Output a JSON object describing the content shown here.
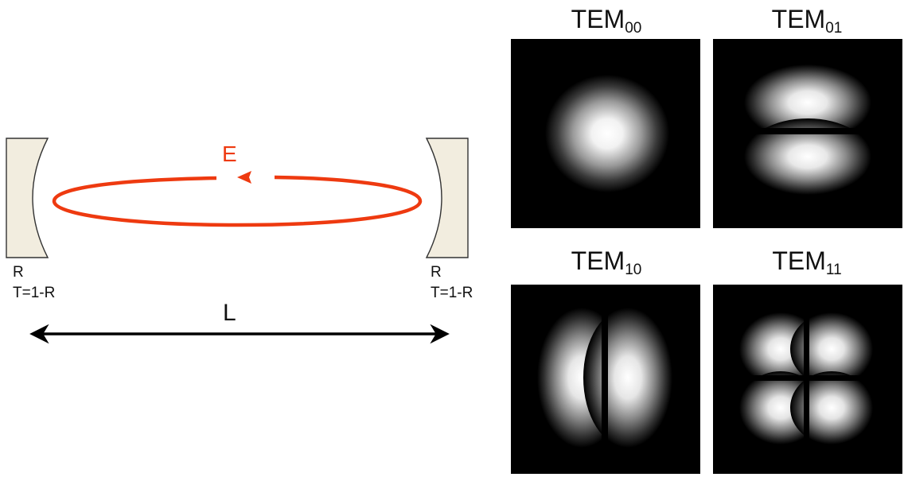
{
  "cavity": {
    "left_mirror": {
      "reflectivity_label": "R",
      "transmission_label": "T=1-R"
    },
    "right_mirror": {
      "reflectivity_label": "R",
      "transmission_label": "T=1-R"
    },
    "field_label": "E",
    "length_label": "L",
    "colors": {
      "beam": "#ee3a10",
      "mirror_fill": "#f2eddf",
      "mirror_stroke": "#333333",
      "arrow": "#000000"
    }
  },
  "modes": [
    {
      "id": "tem00",
      "prefix": "TEM",
      "subscript": "00"
    },
    {
      "id": "tem01",
      "prefix": "TEM",
      "subscript": "01"
    },
    {
      "id": "tem10",
      "prefix": "TEM",
      "subscript": "10"
    },
    {
      "id": "tem11",
      "prefix": "TEM",
      "subscript": "11"
    }
  ]
}
